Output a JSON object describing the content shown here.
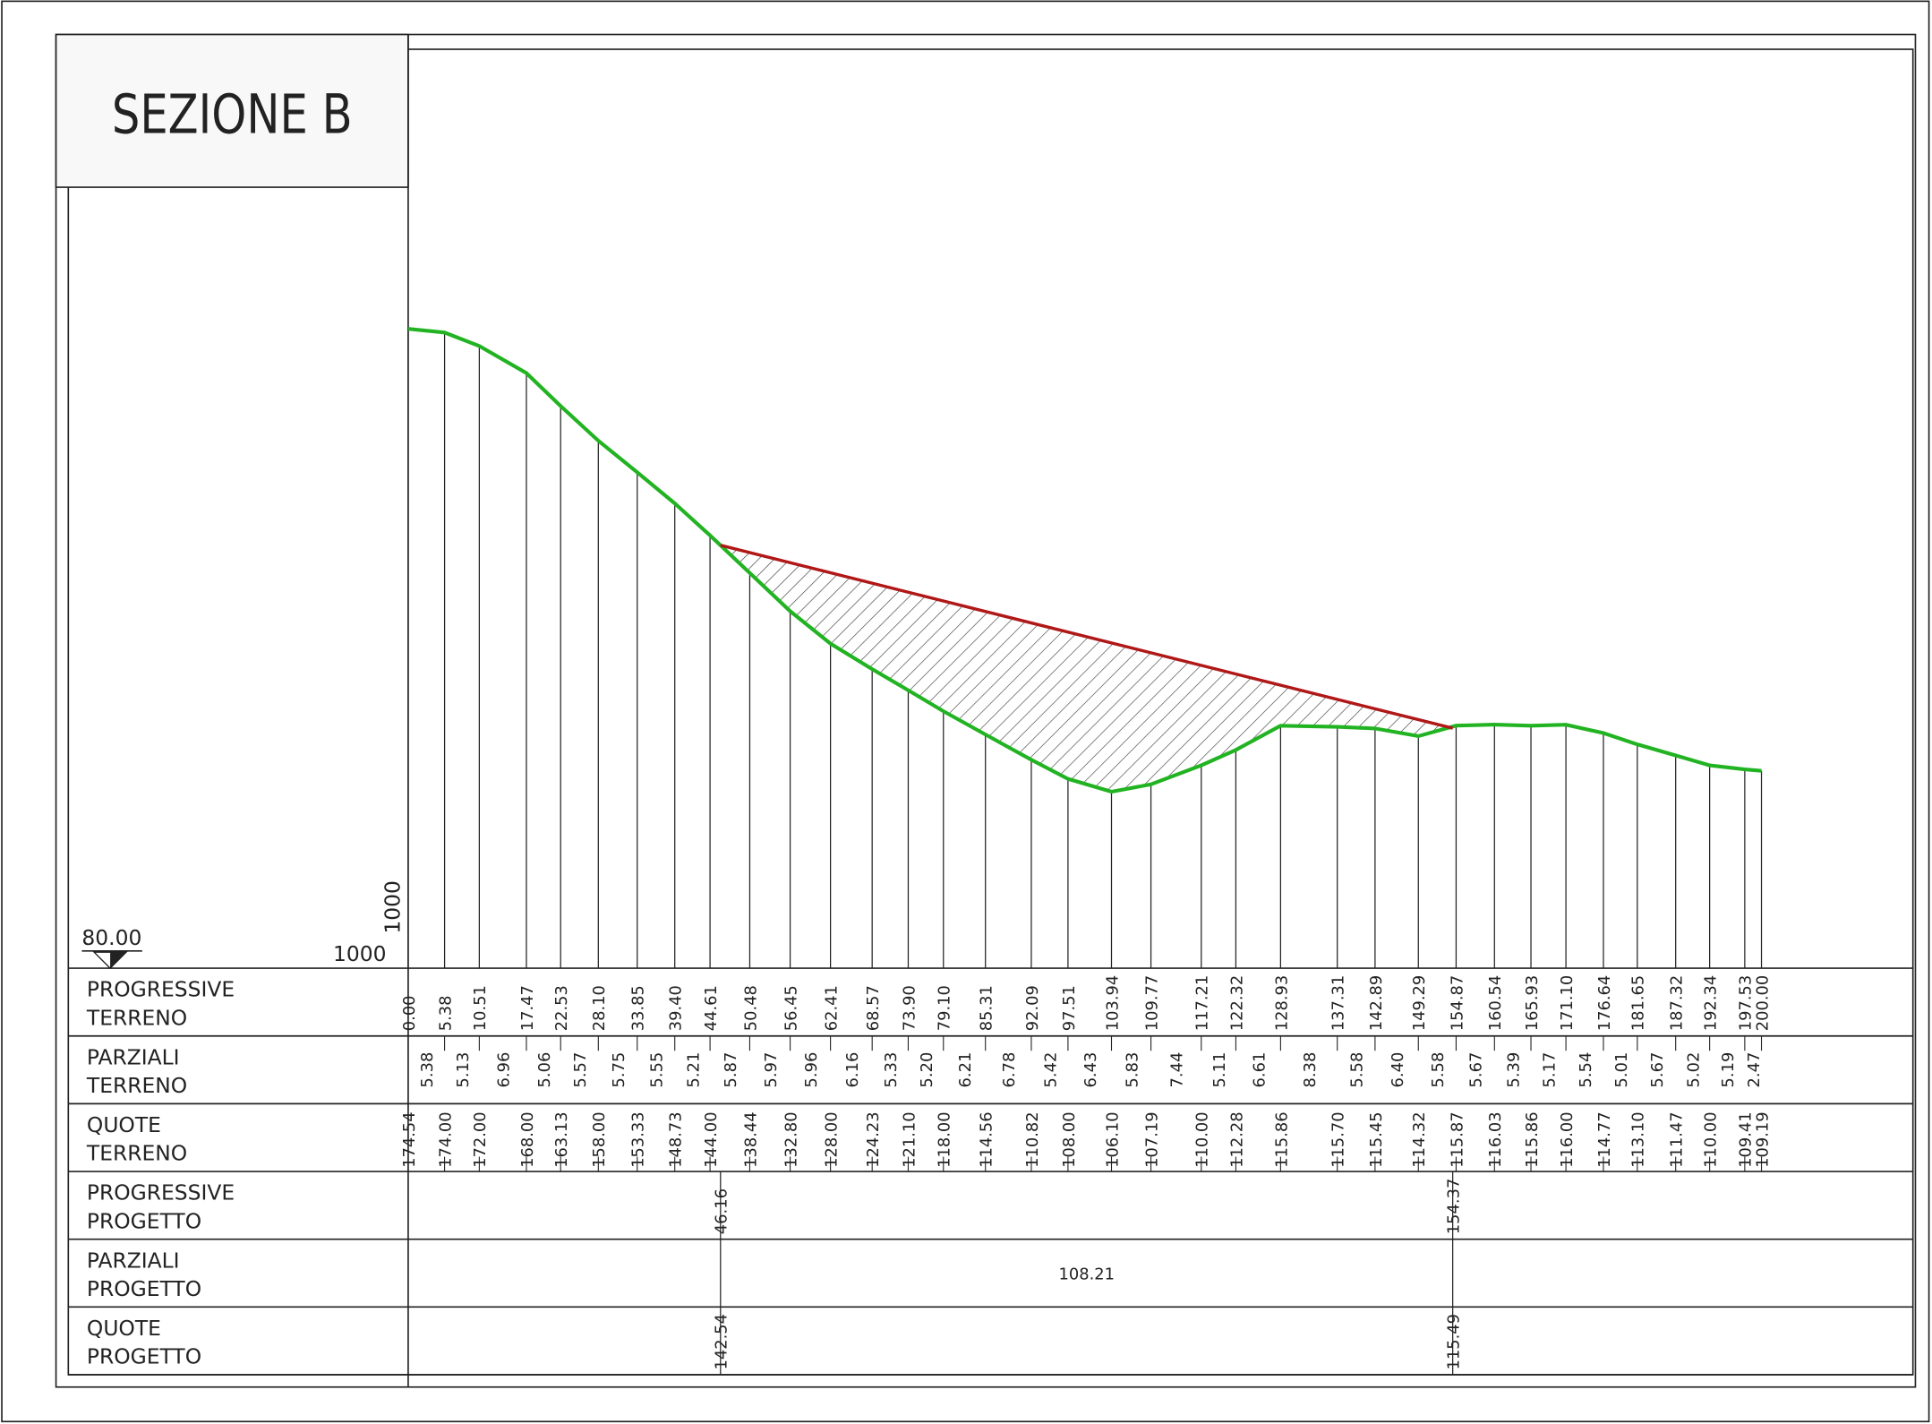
{
  "title": "SEZIONE B",
  "datum": {
    "elevation": "80.00",
    "scale_h": "1000",
    "scale_v": "1000"
  },
  "rows": [
    [
      "PROGRESSIVE",
      "TERRENO"
    ],
    [
      "PARZIALI",
      "TERRENO"
    ],
    [
      "QUOTE",
      "TERRENO"
    ],
    [
      "PROGRESSIVE",
      "PROGETTO"
    ],
    [
      "PARZIALI",
      "PROGETTO"
    ],
    [
      "QUOTE",
      "PROGETTO"
    ]
  ],
  "terrain": {
    "progressive": [
      "0.00",
      "5.38",
      "10.51",
      "17.47",
      "22.53",
      "28.10",
      "33.85",
      "39.40",
      "44.61",
      "50.48",
      "56.45",
      "62.41",
      "68.57",
      "73.90",
      "79.10",
      "85.31",
      "92.09",
      "97.51",
      "103.94",
      "109.77",
      "117.21",
      "122.32",
      "128.93",
      "137.31",
      "142.89",
      "149.29",
      "154.87",
      "160.54",
      "165.93",
      "171.10",
      "176.64",
      "181.65",
      "187.32",
      "192.34",
      "197.53",
      "200.00"
    ],
    "partial": [
      "5.38",
      "5.13",
      "6.96",
      "5.06",
      "5.57",
      "5.75",
      "5.55",
      "5.21",
      "5.87",
      "5.97",
      "5.96",
      "6.16",
      "5.33",
      "5.20",
      "6.21",
      "6.78",
      "5.42",
      "6.43",
      "5.83",
      "7.44",
      "5.11",
      "6.61",
      "8.38",
      "5.58",
      "6.40",
      "5.58",
      "5.67",
      "5.39",
      "5.17",
      "5.54",
      "5.01",
      "5.67",
      "5.02",
      "5.19",
      "2.47"
    ],
    "elevation": [
      "174.54",
      "174.00",
      "172.00",
      "168.00",
      "163.13",
      "158.00",
      "153.33",
      "148.73",
      "144.00",
      "138.44",
      "132.80",
      "128.00",
      "124.23",
      "121.10",
      "118.00",
      "114.56",
      "110.82",
      "108.00",
      "106.10",
      "107.19",
      "110.00",
      "112.28",
      "115.86",
      "115.70",
      "115.45",
      "114.32",
      "115.87",
      "116.03",
      "115.86",
      "116.00",
      "114.77",
      "113.10",
      "111.47",
      "110.00",
      "109.41",
      "109.19"
    ]
  },
  "design": {
    "progressive": [
      "46.16",
      "154.37"
    ],
    "partial": [
      "108.21"
    ],
    "elevation": [
      "142.54",
      "115.49"
    ]
  }
}
